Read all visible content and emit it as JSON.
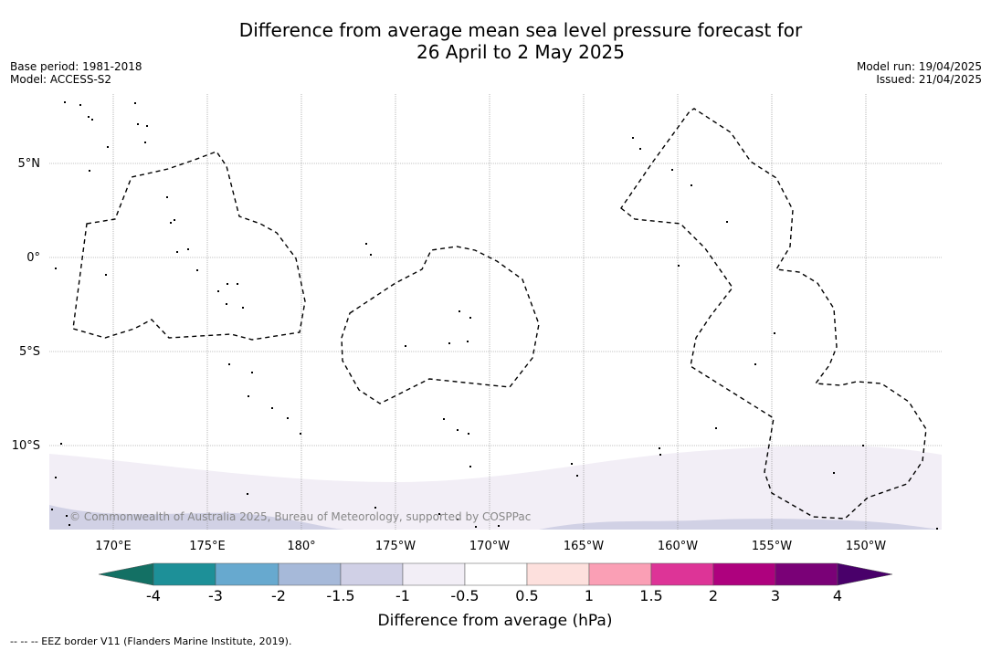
{
  "title": {
    "line1": "Difference from average mean sea level pressure forecast for",
    "line2": "26 April to 2 May 2025"
  },
  "meta_left": {
    "base_period": "Base period: 1981-2018",
    "model": "Model: ACCESS-S2"
  },
  "meta_right": {
    "model_run": "Model run: 19/04/2025",
    "issued": "Issued: 21/04/2025"
  },
  "map": {
    "copyright": "© Commonwealth of Australia 2025, Bureau of Meteorology, supported by COSPPac",
    "lon_labels": [
      "170°E",
      "175°E",
      "180°",
      "175°W",
      "170°W",
      "165°W",
      "160°W",
      "155°W",
      "150°W"
    ],
    "lat_labels": [
      "5°N",
      "0°",
      "5°S",
      "10°S"
    ],
    "colors": {
      "shade_light": "#f2eef6",
      "shade_medium": "#d1d1e5",
      "grid": "#888888"
    }
  },
  "colorbar": {
    "ticks": [
      "-4",
      "-3",
      "-2",
      "-1.5",
      "-1",
      "-0.5",
      "0.5",
      "1",
      "1.5",
      "2",
      "3",
      "4"
    ],
    "colors": [
      "#137064",
      "#1d9098",
      "#67a9cf",
      "#a6b9d9",
      "#d0d0e6",
      "#f2eef6",
      "#ffffff",
      "#fde0dd",
      "#fa9fb5",
      "#dd3497",
      "#ae017e",
      "#7a0177",
      "#49006a"
    ],
    "label": "Difference from average (hPa)"
  },
  "footer": {
    "eez": "--  --  -- EEZ border V11 (Flanders Marine Institute, 2019)."
  }
}
